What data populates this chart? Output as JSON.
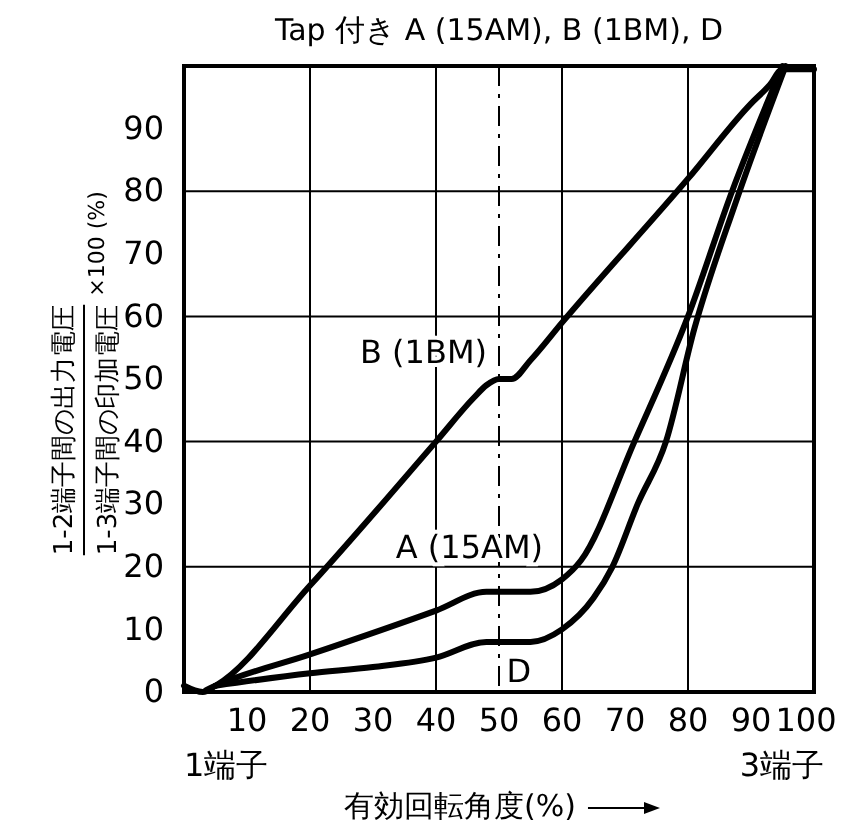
{
  "chart_data": {
    "type": "line",
    "title": "Tap 付き A (15AM), B (1BM), D",
    "xlabel": "有効回転角度(%)",
    "ylabel": "1-2端子間の出力電圧 1-3端子間の印加電圧 ×100 (%)",
    "xlim": [
      0,
      100
    ],
    "ylim": [
      0,
      100
    ],
    "xticks": [
      10,
      20,
      30,
      40,
      50,
      60,
      70,
      80,
      90,
      100
    ],
    "yticks": [
      0,
      10,
      20,
      30,
      40,
      50,
      60,
      70,
      80,
      90
    ],
    "grid": true,
    "marker": "none",
    "line_style": "solid",
    "ref_lines": [
      {
        "axis": "x",
        "value": 50,
        "line_style": "dashdot",
        "color": "#000000"
      }
    ],
    "annotations": [
      "1端子",
      "3端子"
    ],
    "series": [
      {
        "name": "B (1BM)",
        "color": "#000000",
        "x": [
          0,
          3,
          5,
          20,
          40,
          46,
          48,
          50,
          52,
          55,
          60,
          80,
          90,
          93,
          95,
          100
        ],
        "values": [
          1,
          0,
          1,
          17,
          40,
          47,
          49,
          50,
          50,
          53,
          59,
          82,
          94,
          97,
          99.5,
          99.5
        ]
      },
      {
        "name": "A (15AM)",
        "color": "#000000",
        "x": [
          3.5,
          5,
          20,
          40,
          48,
          50,
          55,
          60,
          63,
          71.5,
          80,
          87,
          95
        ],
        "values": [
          0.3,
          1,
          6,
          13,
          16,
          16,
          16,
          18,
          21,
          40,
          60,
          80,
          100
        ]
      },
      {
        "name": "D",
        "color": "#000000",
        "x": [
          5,
          20,
          30,
          40,
          48,
          55,
          60,
          65,
          68,
          72,
          76.5,
          81,
          87.5,
          95.5
        ],
        "values": [
          1,
          3,
          4,
          5.5,
          8,
          8,
          10,
          15,
          20,
          30,
          40,
          58,
          78,
          100
        ]
      }
    ]
  }
}
